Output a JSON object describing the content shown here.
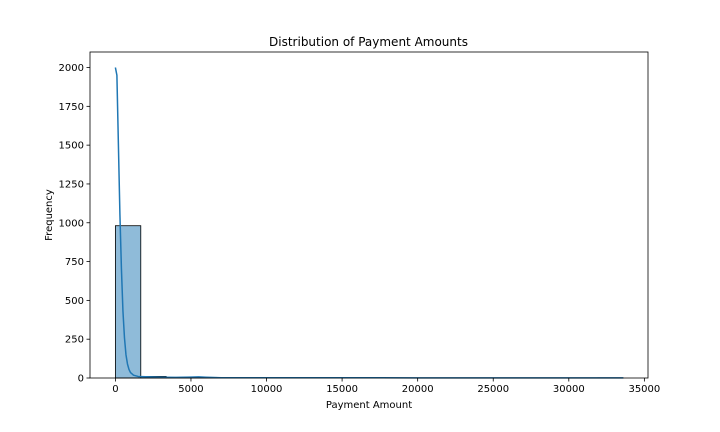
{
  "chart_data": {
    "type": "bar",
    "title": "Distribution of Payment Amounts",
    "xlabel": "Payment Amount",
    "ylabel": "Frequency",
    "xlim": [
      -1680,
      35240
    ],
    "ylim": [
      0,
      2100
    ],
    "x_ticks": [
      0,
      5000,
      10000,
      15000,
      20000,
      25000,
      30000,
      35000
    ],
    "x_tick_labels": [
      "0",
      "5000",
      "10000",
      "15000",
      "20000",
      "25000",
      "30000",
      "35000"
    ],
    "y_ticks": [
      0,
      250,
      500,
      750,
      1000,
      1250,
      1500,
      1750,
      2000
    ],
    "y_tick_labels": [
      "0",
      "250",
      "500",
      "750",
      "1000",
      "1250",
      "1500",
      "1750",
      "2000"
    ],
    "bins": [
      {
        "x0": 0,
        "x1": 1680,
        "count": 981
      },
      {
        "x0": 1680,
        "x1": 3360,
        "count": 10
      },
      {
        "x0": 3360,
        "x1": 5040,
        "count": 3
      },
      {
        "x0": 5040,
        "x1": 6720,
        "count": 4
      },
      {
        "x0": 6720,
        "x1": 8400,
        "count": 1
      },
      {
        "x0": 8400,
        "x1": 10080,
        "count": 0
      },
      {
        "x0": 10080,
        "x1": 11760,
        "count": 1
      },
      {
        "x0": 11760,
        "x1": 13440,
        "count": 0
      },
      {
        "x0": 13440,
        "x1": 15120,
        "count": 0
      },
      {
        "x0": 15120,
        "x1": 16800,
        "count": 0
      },
      {
        "x0": 16800,
        "x1": 18480,
        "count": 0
      },
      {
        "x0": 18480,
        "x1": 20160,
        "count": 0
      },
      {
        "x0": 20160,
        "x1": 21840,
        "count": 0
      },
      {
        "x0": 21840,
        "x1": 23520,
        "count": 0
      },
      {
        "x0": 23520,
        "x1": 25200,
        "count": 0
      },
      {
        "x0": 25200,
        "x1": 26880,
        "count": 0
      },
      {
        "x0": 26880,
        "x1": 28560,
        "count": 0
      },
      {
        "x0": 28560,
        "x1": 30240,
        "count": 0
      },
      {
        "x0": 30240,
        "x1": 31920,
        "count": 0
      },
      {
        "x0": 31920,
        "x1": 33600,
        "count": 1
      }
    ],
    "kde": {
      "x": [
        0,
        100,
        200,
        300,
        400,
        500,
        600,
        700,
        800,
        900,
        1000,
        1200,
        1500,
        2000,
        3000,
        4000,
        5000,
        5500,
        6000,
        7000,
        10000,
        20000,
        30000,
        33600
      ],
      "y": [
        2000,
        1950,
        1500,
        1050,
        700,
        430,
        260,
        150,
        90,
        55,
        35,
        18,
        10,
        8,
        5,
        4,
        6,
        7,
        5,
        2,
        2,
        1,
        1,
        1
      ]
    },
    "colors": {
      "bar_fill": "#1f77b4",
      "bar_fill_opacity": 0.5,
      "bar_edge": "#000000",
      "kde_line": "#1f77b4"
    },
    "grid": false,
    "legend": "none"
  }
}
